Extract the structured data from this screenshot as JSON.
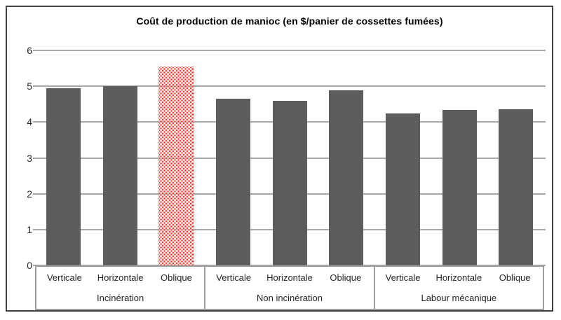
{
  "chart_data": {
    "type": "bar",
    "title": "Coût de production  de manioc (en $/panier de cossettes fumées)",
    "xlabel": "",
    "ylabel": "",
    "ylim": [
      0,
      6
    ],
    "yticks": [
      0,
      1,
      2,
      3,
      4,
      5,
      6
    ],
    "grid": true,
    "legend_position": "none",
    "bar_color": "#5d5d5d",
    "gridline_color": "#a6a6a6",
    "highlight_color": "#e8423c",
    "highlight_bar": {
      "group": "Incinération",
      "category": "Oblique",
      "style": "red dotted pattern fill"
    },
    "groups": [
      {
        "name": "Incinération",
        "categories": [
          "Verticale",
          "Horizontale",
          "Oblique"
        ],
        "values": [
          4.95,
          5.0,
          5.53
        ]
      },
      {
        "name": "Non incinération",
        "categories": [
          "Verticale",
          "Horizontale",
          "Oblique"
        ],
        "values": [
          4.65,
          4.6,
          4.88
        ]
      },
      {
        "name": "Labour mécanique",
        "categories": [
          "Verticale",
          "Horizontale",
          "Oblique"
        ],
        "values": [
          4.25,
          4.34,
          4.36
        ]
      }
    ]
  }
}
